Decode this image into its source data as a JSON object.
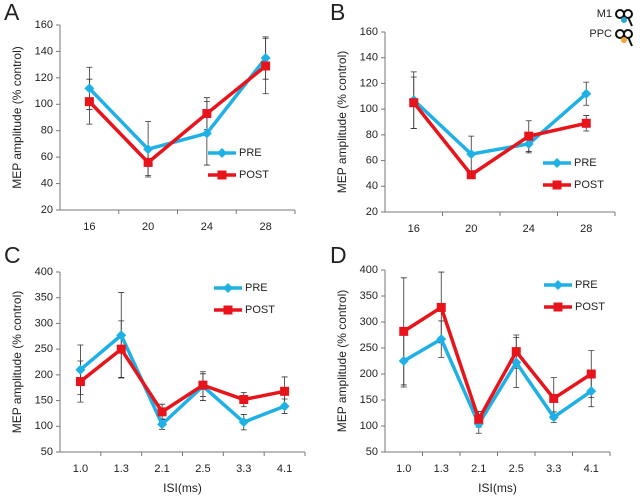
{
  "chart_data": [
    {
      "type": "line",
      "panel": "A",
      "ylabel": "MEP amplitude (% control)",
      "categories": [
        "16",
        "20",
        "24",
        "28"
      ],
      "series": [
        {
          "name": "PRE",
          "color": "#1fb0e6",
          "marker": "diamond",
          "values": [
            112,
            66,
            78,
            135
          ],
          "errors": [
            16,
            21,
            24,
            16
          ]
        },
        {
          "name": "POST",
          "color": "#e8141b",
          "marker": "square",
          "values": [
            102,
            56,
            93,
            129
          ],
          "errors": [
            17,
            10,
            12,
            21
          ]
        }
      ],
      "ylim": [
        20,
        160
      ],
      "yticks": [
        20,
        40,
        60,
        80,
        100,
        120,
        140,
        160
      ],
      "legend": "right"
    },
    {
      "type": "line",
      "panel": "B",
      "ylabel": "MEP amplitude (% control)",
      "categories": [
        "16",
        "20",
        "24",
        "28"
      ],
      "annotations": [
        "M1",
        "PPC"
      ],
      "series": [
        {
          "name": "PRE",
          "color": "#1fb0e6",
          "marker": "diamond",
          "values": [
            107,
            65,
            73,
            112
          ],
          "errors": [
            22,
            14,
            7,
            9
          ]
        },
        {
          "name": "POST",
          "color": "#e8141b",
          "marker": "square",
          "values": [
            105,
            49,
            79,
            89
          ],
          "errors": [
            20,
            3,
            12,
            6
          ]
        }
      ],
      "ylim": [
        20,
        160
      ],
      "yticks": [
        20,
        40,
        60,
        80,
        100,
        120,
        140,
        160
      ],
      "legend": "right"
    },
    {
      "type": "line",
      "panel": "C",
      "ylabel": "MEP amplitude (% control)",
      "xlabel": "ISI(ms)",
      "categories": [
        "1.0",
        "1.3",
        "2.1",
        "2.5",
        "3.3",
        "4.1"
      ],
      "series": [
        {
          "name": "PRE",
          "color": "#1fb0e6",
          "marker": "diamond",
          "values": [
            210,
            277,
            104,
            178,
            108,
            139
          ],
          "errors": [
            48,
            83,
            10,
            28,
            15,
            14
          ]
        },
        {
          "name": "POST",
          "color": "#e8141b",
          "marker": "square",
          "values": [
            187,
            250,
            128,
            180,
            152,
            168
          ],
          "errors": [
            40,
            55,
            15,
            22,
            14,
            28
          ]
        }
      ],
      "ylim": [
        50,
        400
      ],
      "yticks": [
        50,
        100,
        150,
        200,
        250,
        300,
        350,
        400
      ],
      "legend": "upper right"
    },
    {
      "type": "line",
      "panel": "D",
      "ylabel": "MEP amplitude (% control)",
      "xlabel": "ISI(ms)",
      "categories": [
        "1.0",
        "1.3",
        "2.1",
        "2.5",
        "3.3",
        "4.1"
      ],
      "series": [
        {
          "name": "PRE",
          "color": "#1fb0e6",
          "marker": "diamond",
          "values": [
            225,
            267,
            104,
            222,
            117,
            167
          ],
          "errors": [
            50,
            35,
            18,
            48,
            10,
            30
          ]
        },
        {
          "name": "POST",
          "color": "#e8141b",
          "marker": "square",
          "values": [
            282,
            328,
            113,
            243,
            153,
            200
          ],
          "errors": [
            103,
            68,
            15,
            32,
            40,
            45
          ]
        }
      ],
      "ylim": [
        50,
        400
      ],
      "yticks": [
        50,
        100,
        150,
        200,
        250,
        300,
        350,
        400
      ],
      "legend": "upper right"
    }
  ]
}
